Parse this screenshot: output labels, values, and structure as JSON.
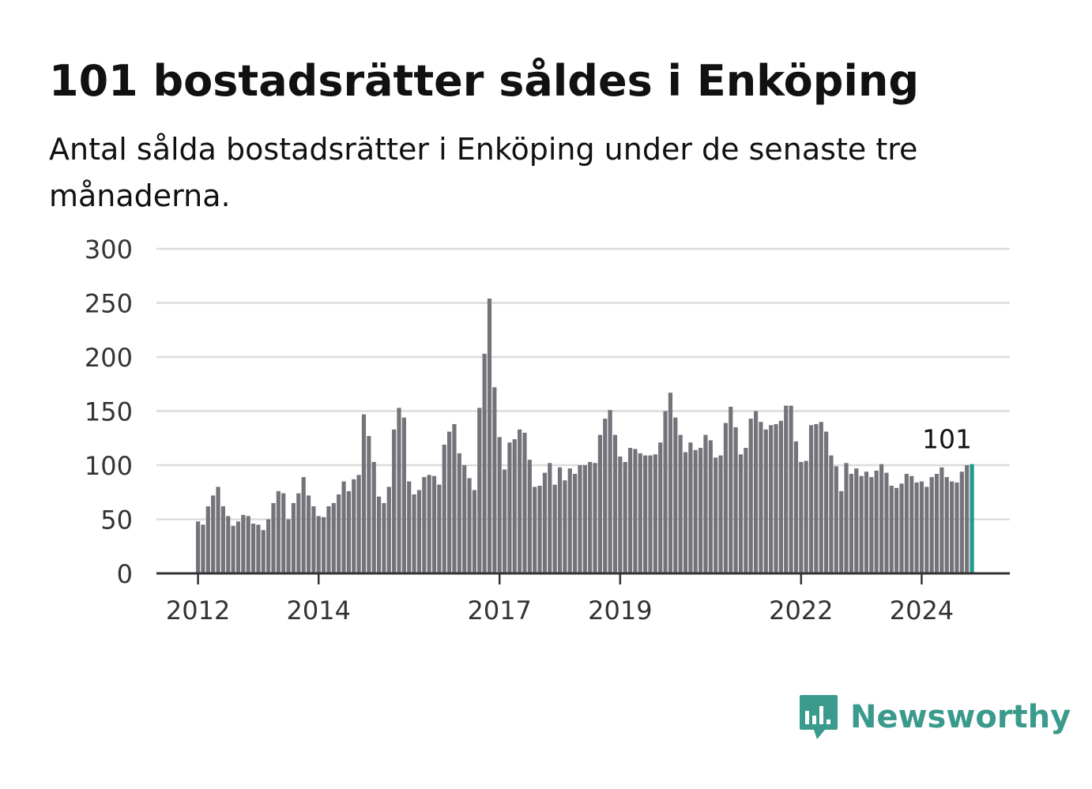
{
  "title": "101 bostadsrätter såldes i Enköping",
  "subtitle": "Antal sålda bostadsrätter i Enköping under de senaste tre månaderna.",
  "brand": {
    "name": "Newsworthy",
    "color": "#3a9a8c",
    "icon": "newsworthy-logo-icon"
  },
  "colors": {
    "bar": "#74737a",
    "highlight": "#1f9a8e",
    "grid": "#dcdcdc",
    "axis": "#333333"
  },
  "chart_data": {
    "type": "bar",
    "y_ticks": [
      0,
      50,
      100,
      150,
      200,
      250,
      300
    ],
    "x_ticks": [
      {
        "label": "2012",
        "index": 0
      },
      {
        "label": "2014",
        "index": 24
      },
      {
        "label": "2017",
        "index": 60
      },
      {
        "label": "2019",
        "index": 84
      },
      {
        "label": "2022",
        "index": 120
      },
      {
        "label": "2024",
        "index": 144
      }
    ],
    "ylim": [
      0,
      300
    ],
    "grid": true,
    "annotation": {
      "text": "101",
      "index": 154
    },
    "values": [
      48,
      45,
      62,
      72,
      80,
      62,
      53,
      44,
      48,
      54,
      53,
      46,
      45,
      40,
      50,
      65,
      76,
      74,
      50,
      65,
      74,
      89,
      72,
      62,
      53,
      52,
      62,
      65,
      73,
      85,
      76,
      87,
      91,
      147,
      127,
      103,
      71,
      65,
      80,
      133,
      153,
      144,
      85,
      73,
      77,
      89,
      91,
      90,
      82,
      119,
      131,
      138,
      111,
      100,
      88,
      77,
      153,
      203,
      254,
      172,
      126,
      96,
      121,
      124,
      133,
      130,
      105,
      80,
      81,
      93,
      102,
      82,
      98,
      86,
      97,
      92,
      100,
      100,
      103,
      102,
      128,
      143,
      151,
      128,
      108,
      103,
      116,
      115,
      111,
      109,
      109,
      110,
      121,
      150,
      167,
      144,
      128,
      112,
      121,
      114,
      116,
      128,
      123,
      107,
      109,
      139,
      154,
      135,
      110,
      116,
      143,
      150,
      140,
      133,
      137,
      138,
      141,
      155,
      155,
      122,
      103,
      104,
      137,
      138,
      140,
      131,
      109,
      99,
      76,
      102,
      92,
      97,
      90,
      94,
      89,
      95,
      101,
      93,
      81,
      79,
      83,
      92,
      90,
      84,
      85,
      80,
      89,
      92,
      98,
      89,
      85,
      84,
      94,
      100,
      101
    ]
  }
}
